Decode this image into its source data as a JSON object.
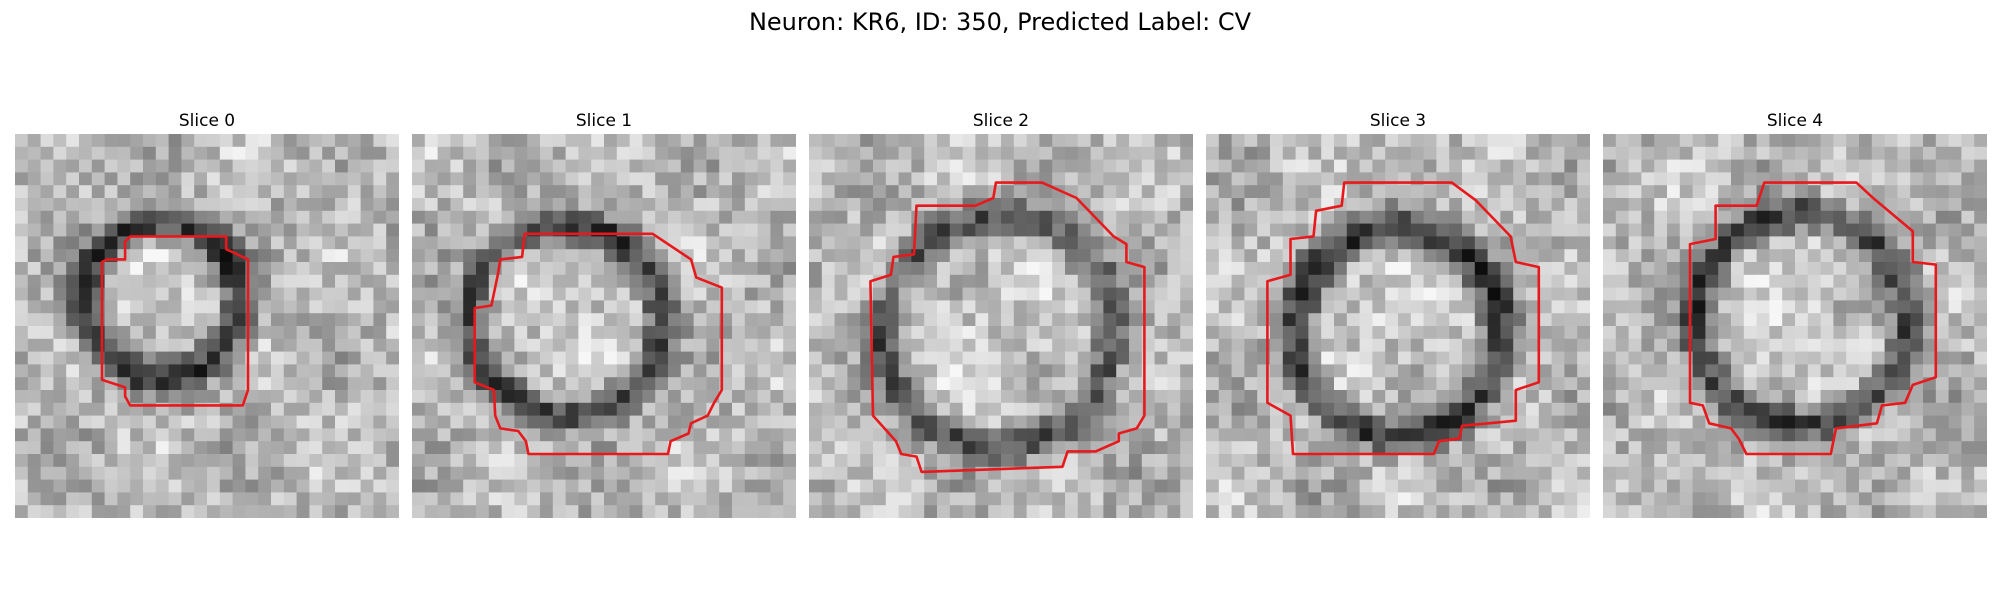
{
  "figure": {
    "title": "Neuron: KR6, ID: 350, Predicted Label: CV"
  },
  "panels": [
    {
      "title": "Slice 0"
    },
    {
      "title": "Slice 1"
    },
    {
      "title": "Slice 2"
    },
    {
      "title": "Slice 3"
    },
    {
      "title": "Slice 4"
    }
  ],
  "colors": {
    "contour": "#e8191c",
    "background": "#ffffff"
  }
}
